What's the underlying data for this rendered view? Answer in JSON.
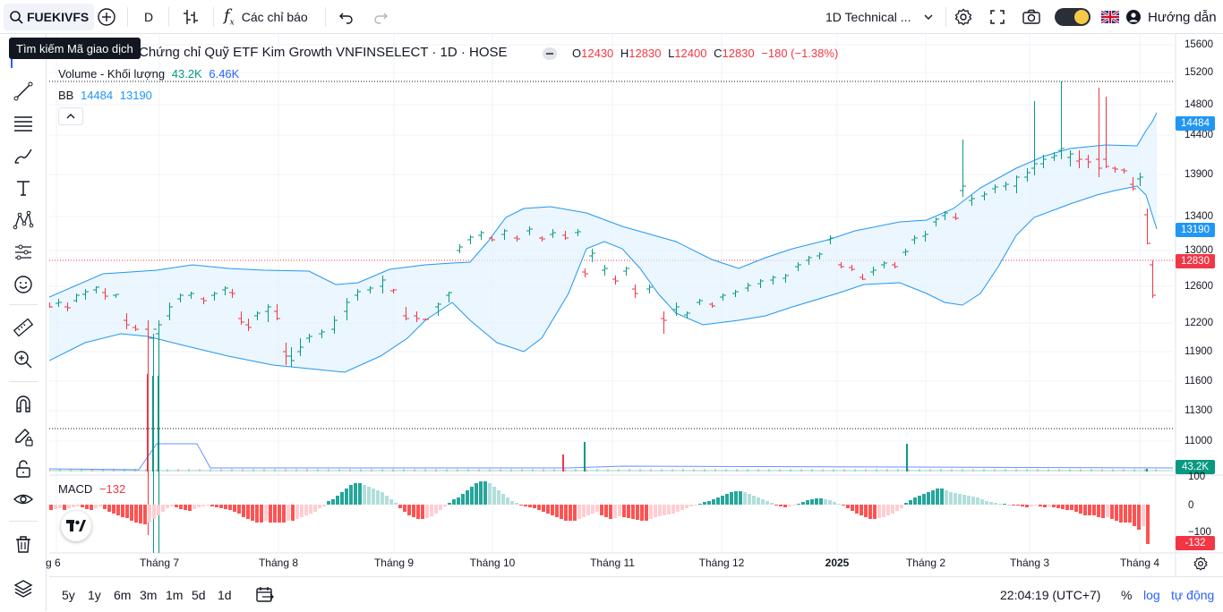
{
  "toolbar": {
    "symbol": "FUEKIVFS",
    "interval": "D",
    "indicators_label": "Các chỉ báo",
    "layout_name": "1D Technical ...",
    "guide_label": "Hướng dẫn"
  },
  "tooltip": "Tìm kiếm Mã giao dịch",
  "legend": {
    "title": "Chứng chỉ Quỹ ETF Kim Growth VNFINSELECT · 1D · HOSE",
    "o_label": "O",
    "o_val": "12430",
    "h_label": "H",
    "h_val": "12830",
    "l_label": "L",
    "l_val": "12400",
    "c_label": "C",
    "c_val": "12830",
    "change": "−180 (−1.38%)",
    "volume_label": "Volume - Khối lượng",
    "volume_val": "43.2K",
    "volume_ma": "6.46K",
    "bb_label": "BB",
    "bb_upper": "14484",
    "bb_lower": "13190",
    "macd_label": "MACD",
    "macd_val": "−132"
  },
  "price_axis": [
    "15600",
    "15200",
    "14800",
    "14400",
    "13900",
    "13400",
    "13000",
    "12600",
    "12200",
    "11900",
    "11600",
    "11300",
    "11000"
  ],
  "price_labels": {
    "upper": "14484",
    "lower": "13190",
    "last": "12830",
    "volume": "43.2K",
    "macd": "-132"
  },
  "macd_axis": [
    "100",
    "0",
    "−100"
  ],
  "time_axis": [
    "g 6",
    "Tháng 7",
    "Tháng 8",
    "Tháng 9",
    "Tháng 10",
    "Tháng 11",
    "Tháng 12",
    "2025",
    "Tháng 2",
    "Tháng 3",
    "Tháng 4"
  ],
  "ranges": [
    "5y",
    "1y",
    "6m",
    "3m",
    "1m",
    "5d",
    "1d"
  ],
  "clock": "22:04:19 (UTC+7)",
  "scale_opts": {
    "percent": "%",
    "log": "log",
    "auto": "tự động"
  },
  "colors": {
    "up": "#089981",
    "down": "#f23645",
    "bb": "#2196f3",
    "bb_fill": "#e3f2fd",
    "accent": "#2962ff"
  }
}
